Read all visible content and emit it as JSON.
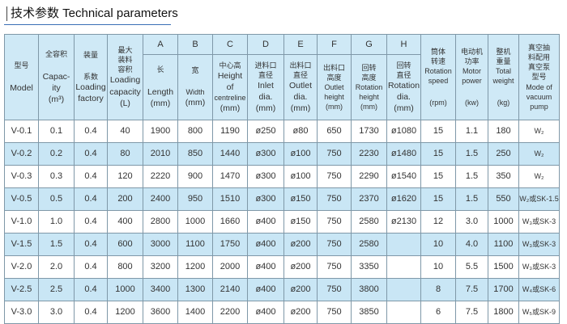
{
  "title": "技术参数 Technical parameters",
  "colors": {
    "header_bg": "#cfe9f6",
    "stripe_bg": "#c9e6f5",
    "border": "#7f98a8",
    "title_underline": "#3a6fb5"
  },
  "headers": {
    "model": {
      "cn": "型号",
      "en": "Model"
    },
    "capacity": {
      "cn": "全容积",
      "en1": "Capac-",
      "en2": "ity",
      "unit": "(m³)"
    },
    "loading_factor": {
      "cn1": "装量",
      "cn2": "系数",
      "en1": "Loading",
      "en2": "factory"
    },
    "loading_capacity": {
      "cn1": "最大",
      "cn2": "装料",
      "cn3": "容积",
      "en1": "Loading",
      "en2": "capacity",
      "unit": "(L)"
    },
    "A": {
      "letter": "A",
      "cn": "长",
      "en": "Length",
      "unit": "(mm)"
    },
    "B": {
      "letter": "B",
      "cn": "宽",
      "en": "Width",
      "unit": "(mm)"
    },
    "C": {
      "letter": "C",
      "cn": "中心高",
      "en1": "Height",
      "en2": "of",
      "en3": "centreline",
      "unit": "(mm)"
    },
    "D": {
      "letter": "D",
      "cn1": "进料口",
      "cn2": "直径",
      "en1": "Inlet",
      "en2": "dia.",
      "unit": "(mm)"
    },
    "E": {
      "letter": "E",
      "cn1": "出料口",
      "cn2": "直径",
      "en1": "Outlet",
      "en2": "dia.",
      "unit": "(mm)"
    },
    "F": {
      "letter": "F",
      "cn1": "出料口",
      "cn2": "高度",
      "en1": "Outlet",
      "en2": "height",
      "unit": "(mm)"
    },
    "G": {
      "letter": "G",
      "cn1": "回转",
      "cn2": "高度",
      "en1": "Rotation",
      "en2": "height",
      "unit": "(mm)"
    },
    "H": {
      "letter": "H",
      "cn1": "回转",
      "cn2": "直径",
      "en1": "Rotation",
      "en2": "dia.",
      "unit": "(mm)"
    },
    "speed": {
      "cn1": "筒体",
      "cn2": "转速",
      "en1": "Rotation",
      "en2": "speed",
      "unit": "(rpm)"
    },
    "power": {
      "cn1": "电动机",
      "cn2": "功率",
      "en1": "Motor",
      "en2": "power",
      "unit": "(kw)"
    },
    "weight": {
      "cn1": "整机",
      "cn2": "重量",
      "en1": "Total",
      "en2": "weight",
      "unit": "(kg)"
    },
    "pump": {
      "cn1": "真空抽",
      "cn2": "料配用",
      "cn3": "真空泵",
      "cn4": "型号",
      "en1": "Mode of",
      "en2": "vacuum",
      "en3": "pump"
    }
  },
  "rows": [
    [
      "V-0.1",
      "0.1",
      "0.4",
      "40",
      "1900",
      "800",
      "1190",
      "ø250",
      "ø80",
      "650",
      "1730",
      "ø1080",
      "15",
      "1.1",
      "180",
      "W₂"
    ],
    [
      "V-0.2",
      "0.2",
      "0.4",
      "80",
      "2010",
      "850",
      "1440",
      "ø300",
      "ø100",
      "750",
      "2230",
      "ø1480",
      "15",
      "1.5",
      "250",
      "W₂"
    ],
    [
      "V-0.3",
      "0.3",
      "0.4",
      "120",
      "2220",
      "900",
      "1470",
      "ø300",
      "ø100",
      "750",
      "2290",
      "ø1540",
      "15",
      "1.5",
      "350",
      "W₂"
    ],
    [
      "V-0.5",
      "0.5",
      "0.4",
      "200",
      "2400",
      "950",
      "1510",
      "ø300",
      "ø150",
      "750",
      "2370",
      "ø1620",
      "15",
      "1.5",
      "550",
      "W₂或SK-1.5"
    ],
    [
      "V-1.0",
      "1.0",
      "0.4",
      "400",
      "2800",
      "1000",
      "1660",
      "ø400",
      "ø150",
      "750",
      "2580",
      "ø2130",
      "12",
      "3.0",
      "1000",
      "W₃或SK-3"
    ],
    [
      "V-1.5",
      "1.5",
      "0.4",
      "600",
      "3000",
      "1100",
      "1750",
      "ø400",
      "ø200",
      "750",
      "2580",
      "",
      "10",
      "4.0",
      "1100",
      "W₃或SK-3"
    ],
    [
      "V-2.0",
      "2.0",
      "0.4",
      "800",
      "3200",
      "1200",
      "2000",
      "ø400",
      "ø200",
      "750",
      "3350",
      "",
      "10",
      "5.5",
      "1500",
      "W₃或SK-3"
    ],
    [
      "V-2.5",
      "2.5",
      "0.4",
      "1000",
      "3400",
      "1300",
      "2140",
      "ø400",
      "ø200",
      "750",
      "3800",
      "",
      "8",
      "7.5",
      "1700",
      "W₄或SK-6"
    ],
    [
      "V-3.0",
      "3.0",
      "0.4",
      "1200",
      "3600",
      "1400",
      "2200",
      "ø400",
      "ø200",
      "750",
      "3850",
      "",
      "6",
      "7.5",
      "1800",
      "W₅或SK-9"
    ]
  ]
}
